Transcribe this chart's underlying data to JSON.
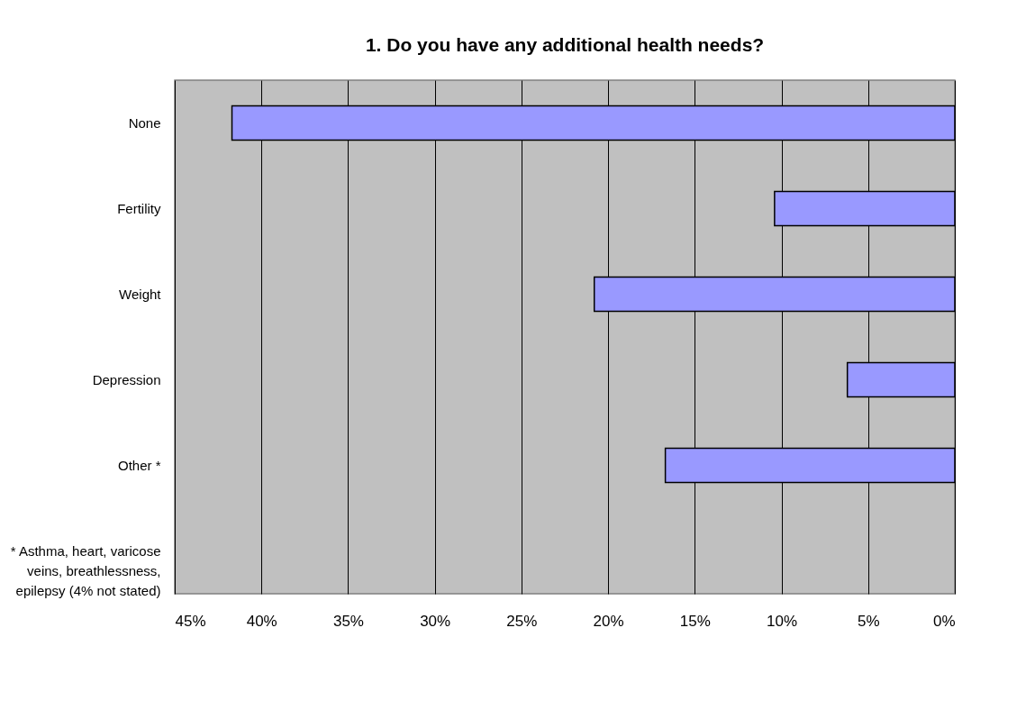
{
  "chart_data": {
    "type": "bar",
    "orientation": "horizontal",
    "title": "1. Do you have any additional health needs?",
    "categories": [
      "None",
      "Fertility",
      "Weight",
      "Depression",
      "Other *",
      "* Asthma, heart, varicose veins, breathlessness, epilepsy (4% not stated)"
    ],
    "values": [
      41.7,
      10.4,
      20.8,
      6.2,
      16.7,
      null
    ],
    "color": "#9999ff",
    "xlim": [
      45,
      0
    ],
    "xticks": [
      {
        "value": 45,
        "label": "45%"
      },
      {
        "value": 40,
        "label": "40%"
      },
      {
        "value": 35,
        "label": "35%"
      },
      {
        "value": 30,
        "label": "30%"
      },
      {
        "value": 25,
        "label": "25%"
      },
      {
        "value": 20,
        "label": "20%"
      },
      {
        "value": 15,
        "label": "15%"
      },
      {
        "value": 10,
        "label": "10%"
      },
      {
        "value": 5,
        "label": "5%"
      },
      {
        "value": 0,
        "label": "0%"
      }
    ],
    "grid": "x"
  }
}
